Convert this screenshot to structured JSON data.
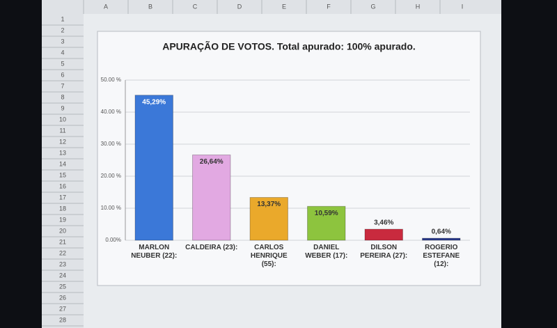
{
  "chart_data": {
    "type": "bar",
    "title": "APURAÇÃO DE VOTOS. Total apurado: 100% apurado.",
    "categories": [
      "MARLON NEUBER (22):",
      "CALDEIRA (23):",
      "CARLOS HENRIQUE (55):",
      "DANIEL WEBER (17):",
      "DILSON PEREIRA (27):",
      "ROGERIO ESTEFANE (12):"
    ],
    "values": [
      45.29,
      26.64,
      13.37,
      10.59,
      3.46,
      0.64
    ],
    "value_labels": [
      "45,29%",
      "26,64%",
      "13,37%",
      "10,59%",
      "3,46%",
      "0,64%"
    ],
    "colors": [
      "#3b78d8",
      "#e2a9e2",
      "#eaa92b",
      "#8dc43e",
      "#c92a3e",
      "#2b3b8c"
    ],
    "ylim": [
      0,
      50
    ],
    "yticks": [
      {
        "value": 0,
        "label": "0.00%"
      },
      {
        "value": 10,
        "label": "10.00 %"
      },
      {
        "value": 20,
        "label": "20.00 %"
      },
      {
        "value": 30,
        "label": "30.00 %"
      },
      {
        "value": 40,
        "label": "40.00 %"
      },
      {
        "value": 50,
        "label": "50.00 %"
      }
    ],
    "grid": true
  },
  "sheet": {
    "columns": [
      "A",
      "B",
      "C",
      "D",
      "E",
      "F",
      "G",
      "H",
      "I"
    ],
    "rows": [
      "1",
      "2",
      "3",
      "4",
      "5",
      "6",
      "7",
      "8",
      "9",
      "10",
      "11",
      "12",
      "13",
      "14",
      "15",
      "16",
      "17",
      "18",
      "19",
      "20",
      "21",
      "22",
      "23",
      "24",
      "25",
      "26",
      "27",
      "28"
    ]
  }
}
